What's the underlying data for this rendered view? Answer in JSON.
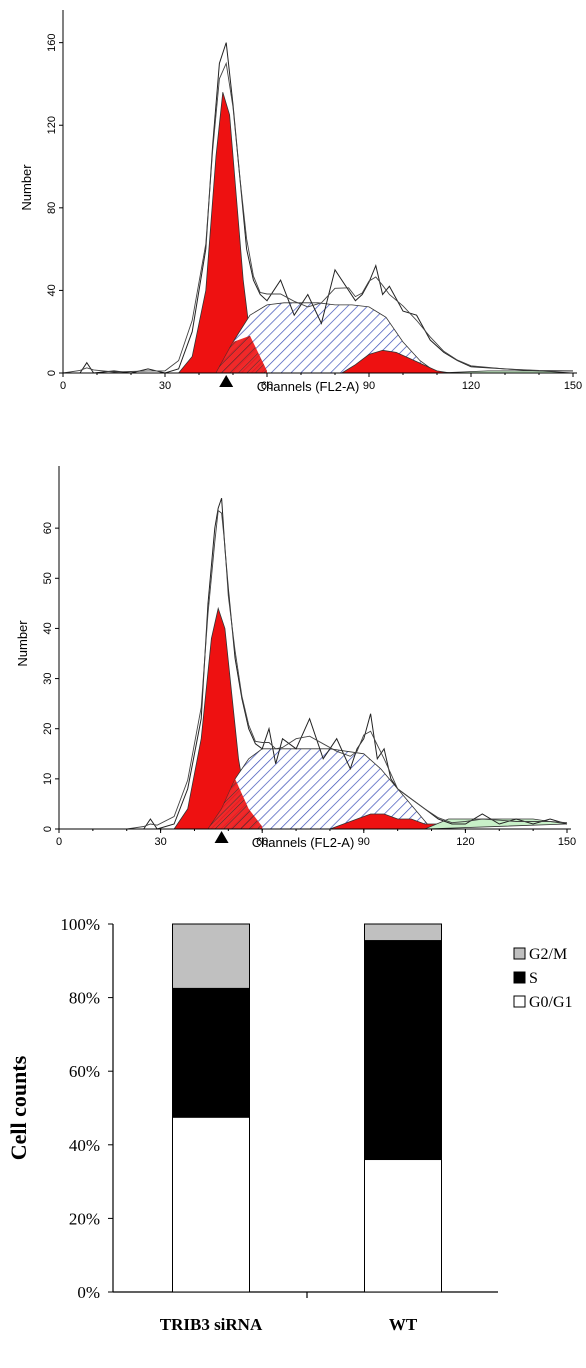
{
  "chart_data": [
    {
      "type": "area",
      "xlabel": "Channels (FL2-A)",
      "ylabel": "Number",
      "xlim": [
        0,
        150
      ],
      "ylim": [
        0,
        170
      ],
      "xticks": [
        "0",
        "30",
        "60",
        "90",
        "120",
        "150"
      ],
      "yticks": [
        "0",
        "40",
        "80",
        "120",
        "160"
      ],
      "marker_channel": 48,
      "series": [
        {
          "fill": "red",
          "x": [
            34,
            38,
            42,
            45,
            47,
            49,
            51,
            53,
            55,
            57,
            59,
            61
          ],
          "y": [
            0,
            8,
            40,
            105,
            136,
            125,
            85,
            45,
            18,
            6,
            2,
            0
          ]
        },
        {
          "fill": "blue-hatch",
          "x": [
            45,
            50,
            55,
            60,
            65,
            70,
            75,
            80,
            85,
            90,
            95,
            100,
            105,
            110
          ],
          "y": [
            0,
            15,
            28,
            33,
            34,
            34,
            34,
            33,
            33,
            32,
            27,
            15,
            6,
            0
          ]
        },
        {
          "fill": "red",
          "x": [
            82,
            86,
            90,
            94,
            98,
            102,
            106,
            110,
            114
          ],
          "y": [
            0,
            4,
            9,
            11,
            10,
            7,
            4,
            1,
            0
          ]
        },
        {
          "fill": "green",
          "x": [
            110,
            125,
            140,
            150
          ],
          "y": [
            0,
            1,
            1,
            0
          ]
        },
        {
          "fill": "none",
          "x": [
            0,
            5,
            7,
            9,
            15,
            20,
            25,
            30,
            34,
            38,
            42,
            44,
            46,
            48,
            50,
            52,
            54,
            56,
            58,
            60,
            64,
            68,
            72,
            76,
            80,
            84,
            86,
            88,
            90,
            92,
            94,
            96,
            100,
            104,
            108,
            112,
            116,
            120,
            130,
            140,
            150
          ],
          "y": [
            0,
            0,
            5,
            0,
            1,
            0,
            2,
            0,
            2,
            20,
            60,
            110,
            150,
            160,
            130,
            95,
            60,
            45,
            38,
            35,
            45,
            28,
            38,
            24,
            50,
            40,
            35,
            38,
            44,
            52,
            38,
            42,
            30,
            28,
            16,
            10,
            6,
            3,
            2,
            1,
            1
          ]
        }
      ]
    },
    {
      "type": "area",
      "xlabel": "Channels (FL2-A)",
      "ylabel": "Number",
      "xlim": [
        0,
        150
      ],
      "ylim": [
        0,
        70
      ],
      "xticks": [
        "0",
        "30",
        "60",
        "90",
        "120",
        "150"
      ],
      "yticks": [
        "0",
        "10",
        "20",
        "30",
        "40",
        "50",
        "60"
      ],
      "marker_channel": 48,
      "series": [
        {
          "fill": "red",
          "x": [
            34,
            38,
            42,
            45,
            47,
            49,
            51,
            53,
            55,
            57,
            59,
            61
          ],
          "y": [
            0,
            4,
            18,
            38,
            44,
            40,
            27,
            14,
            6,
            2,
            1,
            0
          ]
        },
        {
          "fill": "blue-hatch",
          "x": [
            44,
            48,
            52,
            56,
            60,
            64,
            70,
            80,
            90,
            95,
            100,
            105,
            110
          ],
          "y": [
            0,
            4,
            10,
            14,
            16,
            16,
            16,
            16,
            15,
            12,
            8,
            4,
            0
          ]
        },
        {
          "fill": "red",
          "x": [
            80,
            84,
            88,
            92,
            96,
            100,
            104,
            108,
            112,
            114
          ],
          "y": [
            0,
            1,
            2,
            3,
            3,
            2,
            2,
            1,
            1,
            0
          ]
        },
        {
          "fill": "green",
          "x": [
            108,
            115,
            125,
            140,
            150
          ],
          "y": [
            0,
            2,
            2,
            2,
            1
          ]
        },
        {
          "fill": "none",
          "x": [
            0,
            20,
            25,
            27,
            29,
            34,
            38,
            42,
            44,
            46,
            47,
            48,
            49,
            50,
            52,
            54,
            56,
            58,
            60,
            62,
            64,
            66,
            70,
            74,
            78,
            82,
            86,
            88,
            90,
            92,
            94,
            96,
            98,
            100,
            104,
            108,
            112,
            116,
            120,
            125,
            130,
            135,
            140,
            145,
            150
          ],
          "y": [
            0,
            0,
            0,
            2,
            0,
            1,
            8,
            22,
            45,
            60,
            64,
            66,
            56,
            48,
            34,
            26,
            20,
            17,
            16,
            20,
            13,
            18,
            16,
            22,
            14,
            18,
            12,
            16,
            18,
            23,
            14,
            16,
            10,
            8,
            6,
            4,
            2,
            1,
            1,
            3,
            1,
            2,
            1,
            2,
            1
          ]
        }
      ]
    },
    {
      "type": "bar",
      "stacked": true,
      "ylabel": "Cell counts",
      "yticks": [
        "0%",
        "20%",
        "40%",
        "60%",
        "80%",
        "100%"
      ],
      "ylim": [
        0,
        100
      ],
      "categories": [
        "TRIB3 siRNA",
        "WT"
      ],
      "series": [
        {
          "name": "G0/G1",
          "color": "#ffffff",
          "values": [
            47.5,
            36
          ]
        },
        {
          "name": "S",
          "color": "#000000",
          "values": [
            35,
            59.5
          ]
        },
        {
          "name": "G2/M",
          "color": "#c0c0c0",
          "values": [
            17.5,
            4.5
          ]
        }
      ],
      "legend": {
        "position": "right",
        "items": [
          {
            "label": "G2/M",
            "color": "#c0c0c0"
          },
          {
            "label": "S",
            "color": "#000000"
          },
          {
            "label": "G0/G1",
            "color": "#ffffff"
          }
        ]
      }
    }
  ]
}
